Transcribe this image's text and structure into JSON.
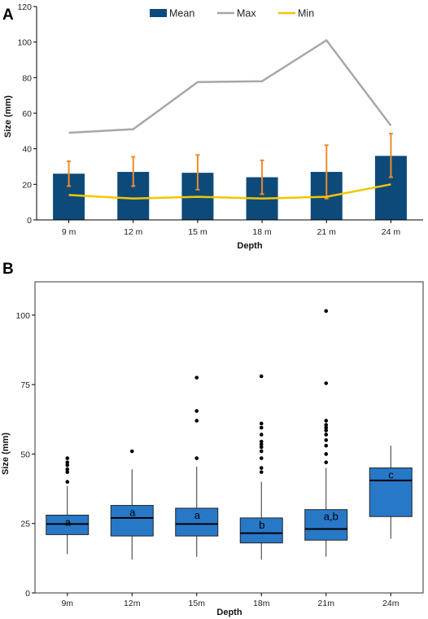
{
  "chart_data": [
    {
      "panel": "A",
      "type": "bar",
      "categories": [
        "9 m",
        "12 m",
        "15 m",
        "18 m",
        "21 m",
        "24 m"
      ],
      "xlabel": "Depth",
      "ylabel": "Size (mm)",
      "ylim": [
        0,
        120
      ],
      "yticks": [
        "0",
        "20",
        "40",
        "60",
        "80",
        "100",
        "120"
      ],
      "legend_position": "top",
      "series": [
        {
          "name": "Mean",
          "kind": "bar",
          "color": "#0d4a7a",
          "values": [
            26,
            27,
            26.5,
            24,
            27,
            36
          ],
          "error_low": [
            19,
            19,
            17,
            14.5,
            12,
            24
          ],
          "error_high": [
            33,
            35.5,
            36.5,
            33.5,
            42,
            48.5
          ],
          "error_color": "#f08a2c"
        },
        {
          "name": "Max",
          "kind": "line",
          "color": "#a7a7a7",
          "values": [
            49,
            51,
            77.5,
            78,
            101,
            53
          ]
        },
        {
          "name": "Min",
          "kind": "line",
          "color": "#f5c400",
          "values": [
            14,
            12,
            13,
            12,
            13,
            20
          ]
        }
      ]
    },
    {
      "panel": "B",
      "type": "box",
      "categories": [
        "9m",
        "12m",
        "15m",
        "18m",
        "21m",
        "24m"
      ],
      "xlabel": "Depth",
      "ylabel": "Size (mm)",
      "ylim": [
        0,
        112
      ],
      "yticks": [
        "0",
        "25",
        "50",
        "75",
        "100"
      ],
      "box_color": "#2878c8",
      "boxes": [
        {
          "min": 14,
          "q1": 21,
          "median": 24.8,
          "q3": 28,
          "max": 38.5,
          "outliers": [
            40,
            43.5,
            44.5,
            46,
            47,
            48.5
          ],
          "letter": "a"
        },
        {
          "min": 12,
          "q1": 20.5,
          "median": 27,
          "q3": 31.5,
          "max": 44.5,
          "outliers": [
            51
          ],
          "letter": "a"
        },
        {
          "min": 13,
          "q1": 20.5,
          "median": 24.8,
          "q3": 30.5,
          "max": 45.5,
          "outliers": [
            48.5,
            62,
            65.5,
            77.5
          ],
          "letter": "a"
        },
        {
          "min": 12,
          "q1": 18,
          "median": 21.5,
          "q3": 27,
          "max": 40,
          "outliers": [
            43.5,
            45,
            48.5,
            51,
            52.5,
            53.5,
            54.5,
            57,
            59.5,
            61,
            78
          ],
          "letter": "b"
        },
        {
          "min": 13,
          "q1": 19,
          "median": 23,
          "q3": 30,
          "max": 45,
          "outliers": [
            47,
            50,
            53,
            55,
            57,
            58.5,
            59.5,
            60.5,
            62,
            75.5,
            101.5
          ],
          "letter": "a,b"
        },
        {
          "min": 19.5,
          "q1": 27.5,
          "median": 40.5,
          "q3": 45,
          "max": 53,
          "outliers": [],
          "letter": "c"
        }
      ]
    }
  ]
}
